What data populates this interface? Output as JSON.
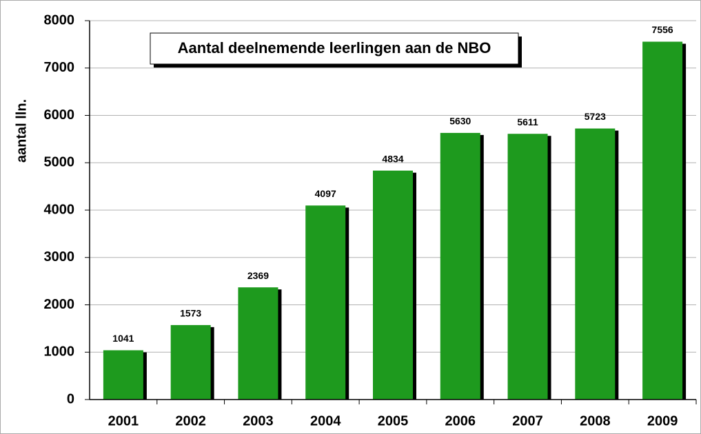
{
  "chart_data": {
    "type": "bar",
    "title": "Aantal deelnemende leerlingen aan de NBO",
    "y_label": "aantal lln.",
    "categories": [
      "2001",
      "2002",
      "2003",
      "2004",
      "2005",
      "2006",
      "2007",
      "2008",
      "2009"
    ],
    "values": [
      1041,
      1573,
      2369,
      4097,
      4834,
      5630,
      5611,
      5723,
      7556
    ],
    "color": "#1e9a1e",
    "ylim": [
      0,
      8000
    ],
    "yticks": [
      0,
      1000,
      2000,
      3000,
      4000,
      5000,
      6000,
      7000,
      8000
    ],
    "grid": true
  }
}
